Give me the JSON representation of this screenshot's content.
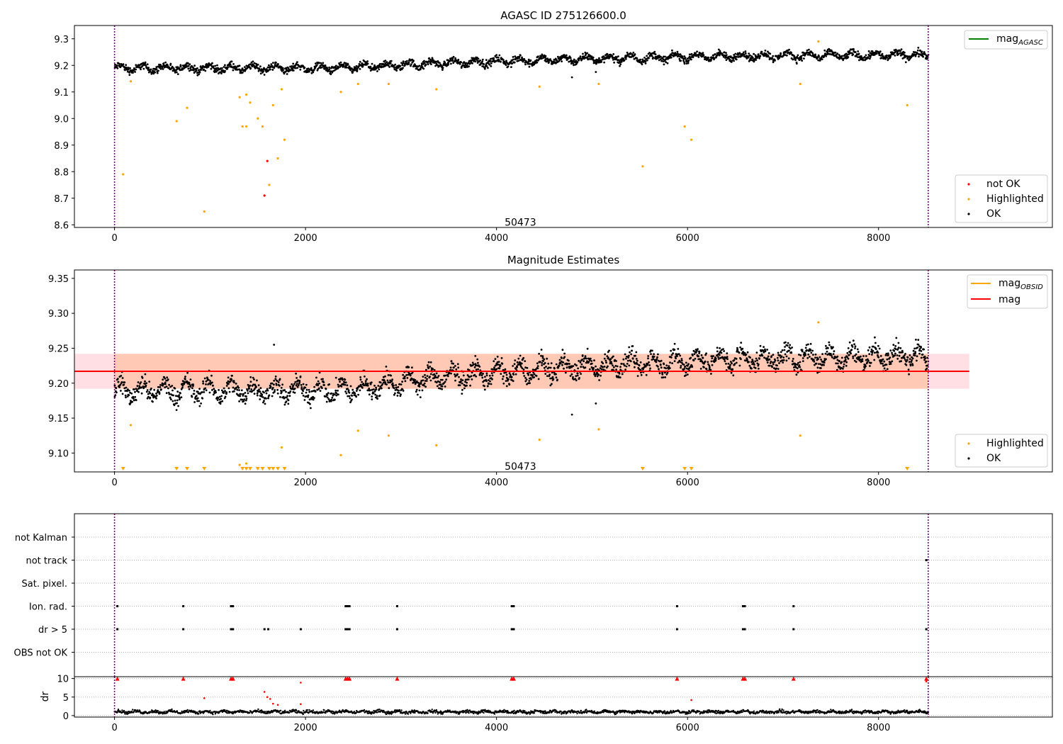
{
  "chart_data": [
    {
      "type": "scatter",
      "title": "AGASC ID 275126600.0",
      "xlim": [
        -420,
        9820
      ],
      "ylim": [
        8.59,
        9.35
      ],
      "xticks": [
        0,
        2000,
        4000,
        6000,
        8000
      ],
      "yticks": [
        8.6,
        8.7,
        8.8,
        8.9,
        9.0,
        9.1,
        9.2,
        9.3
      ],
      "ytick_labels": [
        "8.6",
        "8.7",
        "8.8",
        "8.9",
        "9.0",
        "9.1",
        "9.2",
        "9.3"
      ],
      "vlines": [
        0,
        8520
      ],
      "annotation": {
        "text": "50473",
        "x": 4250,
        "y": 8.61
      },
      "legend_top": {
        "position": "top-right",
        "entries": [
          {
            "label": "mag",
            "sub": "AGASC",
            "color": "#008000"
          }
        ]
      },
      "legend_bottom": {
        "position": "bottom-right",
        "entries": [
          {
            "label": "not OK",
            "color": "#ff0000"
          },
          {
            "label": "Highlighted",
            "color": "#ffa500"
          },
          {
            "label": "OK",
            "color": "#000000"
          }
        ]
      },
      "series": [
        {
          "name": "not OK",
          "color": "#ff0000",
          "points": [
            [
              1600,
              8.84
            ],
            [
              1570,
              8.71
            ]
          ]
        },
        {
          "name": "Highlighted",
          "color": "#ffa500",
          "points": [
            [
              90,
              8.79
            ],
            [
              170,
              9.14
            ],
            [
              650,
              8.99
            ],
            [
              760,
              9.04
            ],
            [
              940,
              8.65
            ],
            [
              1310,
              9.08
            ],
            [
              1340,
              8.97
            ],
            [
              1380,
              9.09
            ],
            [
              1380,
              8.97
            ],
            [
              1420,
              9.06
            ],
            [
              1500,
              9.0
            ],
            [
              1550,
              8.97
            ],
            [
              1620,
              8.75
            ],
            [
              1660,
              9.05
            ],
            [
              1710,
              8.85
            ],
            [
              1750,
              9.11
            ],
            [
              1780,
              8.92
            ],
            [
              2370,
              9.1
            ],
            [
              2550,
              9.13
            ],
            [
              2870,
              9.13
            ],
            [
              3370,
              9.11
            ],
            [
              4450,
              9.12
            ],
            [
              5070,
              9.13
            ],
            [
              5530,
              8.82
            ],
            [
              5970,
              8.97
            ],
            [
              6040,
              8.92
            ],
            [
              7180,
              9.13
            ],
            [
              7370,
              9.29
            ],
            [
              8300,
              9.05
            ]
          ]
        },
        {
          "name": "OK",
          "color": "#000000",
          "trend": [
            [
              0,
              9.19
            ],
            [
              2400,
              9.19
            ],
            [
              3500,
              9.21
            ],
            [
              5000,
              9.225
            ],
            [
              6500,
              9.235
            ],
            [
              8520,
              9.24
            ]
          ],
          "spread": 0.018,
          "outliers": [
            [
              4790,
              9.155
            ],
            [
              5040,
              9.175
            ]
          ]
        }
      ]
    },
    {
      "type": "scatter",
      "title": "Magnitude Estimates",
      "xlim": [
        -420,
        9820
      ],
      "ylim": [
        9.073,
        9.362
      ],
      "xticks": [
        0,
        2000,
        4000,
        6000,
        8000
      ],
      "yticks": [
        9.1,
        9.15,
        9.2,
        9.25,
        9.3,
        9.35
      ],
      "ytick_labels": [
        "9.10",
        "9.15",
        "9.20",
        "9.25",
        "9.30",
        "9.35"
      ],
      "vlines": [
        0,
        8520
      ],
      "annotation": {
        "text": "50473",
        "x": 4250,
        "y": 9.081
      },
      "mag_value": 9.217,
      "mag_band": [
        9.192,
        9.242
      ],
      "band_xlim": [
        -420,
        8950
      ],
      "legend_top": {
        "position": "top-right",
        "entries": [
          {
            "label": "mag",
            "sub": "OBSID",
            "color": "#ffa500"
          },
          {
            "label": "mag",
            "color": "#ff0000"
          }
        ]
      },
      "legend_bottom": {
        "position": "bottom-right",
        "entries": [
          {
            "label": "Highlighted",
            "color": "#ffa500"
          },
          {
            "label": "OK",
            "color": "#000000"
          }
        ]
      },
      "series": [
        {
          "name": "Highlighted",
          "color": "#ffa500",
          "points": [
            [
              170,
              9.14
            ],
            [
              1310,
              9.083
            ],
            [
              1380,
              9.085
            ],
            [
              1750,
              9.108
            ],
            [
              2370,
              9.097
            ],
            [
              2550,
              9.132
            ],
            [
              2870,
              9.125
            ],
            [
              3370,
              9.111
            ],
            [
              4450,
              9.119
            ],
            [
              5070,
              9.134
            ],
            [
              7180,
              9.125
            ],
            [
              7370,
              9.287
            ]
          ]
        },
        {
          "name": "Highlighted (below axis)",
          "color": "#ffa500",
          "markers": [
            90,
            650,
            760,
            940,
            1340,
            1380,
            1420,
            1500,
            1550,
            1620,
            1660,
            1710,
            1780,
            5530,
            5970,
            6040,
            8300
          ]
        },
        {
          "name": "OK",
          "color": "#000000",
          "trend": [
            [
              0,
              9.19
            ],
            [
              2400,
              9.19
            ],
            [
              3500,
              9.21
            ],
            [
              5000,
              9.225
            ],
            [
              6500,
              9.235
            ],
            [
              8520,
              9.24
            ]
          ],
          "spread": 0.018,
          "outliers": [
            [
              4790,
              9.155
            ],
            [
              5040,
              9.171
            ],
            [
              1670,
              9.255
            ]
          ]
        }
      ]
    },
    {
      "type": "scatter",
      "title": "",
      "xlim": [
        -420,
        9820
      ],
      "categories": [
        "not Kalman",
        "not track",
        "Sat. pixel.",
        "Ion. rad.",
        "dr > 5",
        "OBS not OK"
      ],
      "vlines": [
        0,
        8520
      ],
      "flags": {
        "not track": [
          8500
        ],
        "Ion. rad.": [
          30,
          720,
          1220,
          1240,
          2420,
          2440,
          2460,
          2960,
          4160,
          4180,
          5890,
          6580,
          6600,
          7110
        ],
        "dr > 5": [
          30,
          720,
          1220,
          1240,
          1570,
          1610,
          1950,
          2420,
          2440,
          2460,
          2960,
          4160,
          4180,
          5890,
          6580,
          6600,
          7110,
          8500
        ]
      }
    },
    {
      "type": "scatter",
      "title": "",
      "ylabel": "dr",
      "xlim": [
        -420,
        9820
      ],
      "ylim": [
        -0.4,
        10.5
      ],
      "xticks": [
        0,
        2000,
        4000,
        6000,
        8000
      ],
      "yticks": [
        0,
        5,
        10
      ],
      "ytick_labels": [
        "0",
        "5",
        "10"
      ],
      "vlines": [
        0,
        8520
      ],
      "series": [
        {
          "name": "OK",
          "color": "#000000",
          "base": 1.0,
          "spread": 0.6
        },
        {
          "name": "not OK",
          "color": "#ff0000",
          "points": [
            [
              940,
              4.7
            ],
            [
              1570,
              6.4
            ],
            [
              1600,
              5.0
            ],
            [
              1630,
              4.5
            ],
            [
              1660,
              3.2
            ],
            [
              1710,
              2.9
            ],
            [
              1950,
              3.1
            ],
            [
              1950,
              8.9
            ],
            [
              6040,
              4.2
            ],
            [
              8500,
              9.2
            ]
          ],
          "markers_at_10": [
            30,
            720,
            1220,
            1240,
            2420,
            2440,
            2460,
            2960,
            4160,
            4180,
            5890,
            6580,
            6600,
            7110,
            8500
          ]
        }
      ]
    }
  ]
}
